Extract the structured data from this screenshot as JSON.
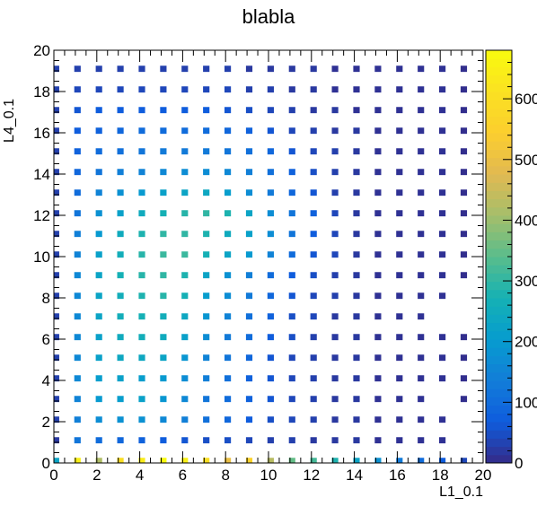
{
  "chart_data": {
    "type": "heatmap",
    "title": "blabla",
    "xlabel": "L1_0.1",
    "ylabel": "L4_0.1",
    "xlim": [
      0,
      20
    ],
    "ylim": [
      0,
      20
    ],
    "x_ticks": [
      0,
      2,
      4,
      6,
      8,
      10,
      12,
      14,
      16,
      18,
      20
    ],
    "y_ticks": [
      0,
      2,
      4,
      6,
      8,
      10,
      12,
      14,
      16,
      18,
      20
    ],
    "colorbar": {
      "min": 0,
      "max": 680,
      "ticks": [
        0,
        100,
        200,
        300,
        400,
        500,
        600
      ],
      "tick_labels": [
        "0",
        "100",
        "200",
        "300",
        "400",
        "500",
        "600"
      ],
      "palette": "parula"
    },
    "grid": false,
    "x_centers": [
      0.1,
      1.1,
      2.1,
      3.1,
      4.1,
      5.1,
      6.1,
      7.1,
      8.1,
      9.1,
      10.1,
      11.1,
      12.1,
      13.1,
      14.1,
      15.1,
      16.1,
      17.1,
      18.1,
      19.1
    ],
    "y_centers": [
      0.1,
      1.1,
      2.1,
      3.1,
      4.1,
      5.1,
      6.1,
      7.1,
      8.1,
      9.1,
      10.1,
      11.1,
      12.1,
      13.1,
      14.1,
      15.1,
      16.1,
      17.1,
      18.1,
      19.1
    ],
    "values": [
      [
        230,
        650,
        420,
        600,
        640,
        680,
        650,
        600,
        500,
        560,
        430,
        350,
        320,
        280,
        230,
        180,
        130,
        100,
        70,
        40
      ],
      [
        20,
        120,
        100,
        90,
        80,
        70,
        60,
        50,
        50,
        40,
        30,
        30,
        20,
        20,
        20,
        10,
        10,
        10,
        10,
        0
      ],
      [
        30,
        140,
        170,
        180,
        180,
        160,
        140,
        110,
        90,
        70,
        50,
        40,
        30,
        20,
        20,
        10,
        10,
        10,
        10,
        0
      ],
      [
        30,
        150,
        200,
        210,
        220,
        190,
        160,
        120,
        100,
        80,
        60,
        40,
        30,
        20,
        20,
        10,
        10,
        10,
        0,
        5
      ],
      [
        30,
        160,
        210,
        220,
        210,
        200,
        170,
        140,
        110,
        80,
        60,
        40,
        30,
        20,
        20,
        10,
        10,
        10,
        10,
        5
      ],
      [
        30,
        160,
        220,
        240,
        240,
        230,
        190,
        150,
        120,
        90,
        60,
        40,
        30,
        20,
        20,
        10,
        10,
        10,
        10,
        5
      ],
      [
        30,
        160,
        220,
        250,
        260,
        250,
        220,
        170,
        130,
        100,
        70,
        50,
        30,
        20,
        20,
        10,
        10,
        10,
        10,
        5
      ],
      [
        30,
        160,
        230,
        260,
        270,
        260,
        240,
        190,
        150,
        110,
        80,
        50,
        40,
        20,
        20,
        10,
        10,
        10,
        0,
        0
      ],
      [
        30,
        160,
        230,
        260,
        280,
        290,
        270,
        210,
        170,
        130,
        90,
        60,
        40,
        30,
        20,
        10,
        10,
        10,
        10,
        0
      ],
      [
        30,
        160,
        230,
        270,
        290,
        300,
        280,
        230,
        180,
        140,
        100,
        70,
        50,
        30,
        20,
        10,
        10,
        10,
        10,
        5
      ],
      [
        30,
        150,
        220,
        260,
        290,
        310,
        310,
        270,
        230,
        200,
        150,
        100,
        60,
        40,
        20,
        10,
        10,
        10,
        10,
        5
      ],
      [
        30,
        140,
        200,
        250,
        280,
        300,
        300,
        280,
        250,
        220,
        170,
        120,
        70,
        40,
        20,
        10,
        10,
        10,
        10,
        5
      ],
      [
        30,
        120,
        180,
        220,
        250,
        270,
        290,
        300,
        280,
        230,
        170,
        120,
        80,
        40,
        20,
        10,
        10,
        10,
        10,
        5
      ],
      [
        30,
        100,
        150,
        180,
        200,
        220,
        230,
        240,
        210,
        170,
        130,
        90,
        60,
        30,
        20,
        10,
        10,
        10,
        10,
        5
      ],
      [
        30,
        90,
        120,
        140,
        150,
        160,
        170,
        170,
        160,
        140,
        110,
        80,
        50,
        30,
        20,
        10,
        10,
        10,
        10,
        5
      ],
      [
        30,
        80,
        100,
        110,
        120,
        130,
        130,
        130,
        120,
        110,
        90,
        60,
        40,
        30,
        20,
        10,
        10,
        10,
        10,
        5
      ],
      [
        30,
        70,
        80,
        90,
        100,
        100,
        100,
        100,
        90,
        80,
        60,
        40,
        30,
        20,
        20,
        10,
        10,
        10,
        10,
        5
      ],
      [
        30,
        60,
        70,
        70,
        70,
        70,
        70,
        70,
        60,
        50,
        40,
        30,
        20,
        20,
        10,
        10,
        10,
        10,
        10,
        5
      ],
      [
        30,
        40,
        40,
        40,
        40,
        40,
        40,
        40,
        40,
        30,
        30,
        20,
        20,
        10,
        10,
        10,
        10,
        10,
        10,
        5
      ],
      [
        30,
        30,
        30,
        30,
        30,
        30,
        30,
        30,
        30,
        20,
        20,
        20,
        20,
        10,
        10,
        10,
        10,
        10,
        10,
        5
      ]
    ]
  }
}
